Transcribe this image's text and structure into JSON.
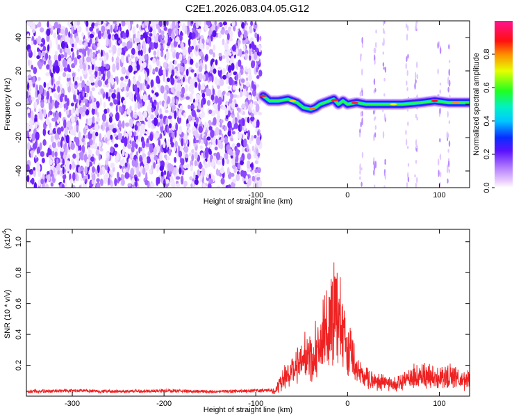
{
  "title": "C2E1.2026.083.04.05.G12",
  "chart_data": [
    {
      "type": "heatmap",
      "xlabel": "Height of straight line (km)",
      "ylabel": "Frequency (Hz)",
      "xlim": [
        -350,
        133
      ],
      "ylim": [
        -50,
        50
      ],
      "x_ticks": [
        -300,
        -200,
        -100,
        0,
        100
      ],
      "x_tick_labels": [
        "-300",
        "-200",
        "-100",
        "0",
        "100"
      ],
      "y_ticks": [
        -40,
        -20,
        0,
        20,
        40
      ],
      "y_tick_labels": [
        "-40",
        "-20",
        "0",
        "20",
        "40"
      ],
      "colorbar": {
        "label": "Normalized spectral amplitude",
        "range": [
          0,
          1
        ],
        "ticks": [
          0.0,
          0.2,
          0.4,
          0.6,
          0.8
        ],
        "tick_labels": [
          "0.0",
          "0.2",
          "0.4",
          "0.6",
          "0.8"
        ],
        "colormap": "rainbow (magenta-blue-cyan-green-yellow-red-magenta)"
      },
      "noise_region_x": [
        -350,
        -95
      ],
      "signal_track": {
        "x": [
          -92,
          -85,
          -75,
          -65,
          -55,
          -48,
          -40,
          -35,
          -30,
          -25,
          -20,
          -15,
          -10,
          -5,
          0,
          10,
          20,
          40,
          60,
          80,
          95,
          110,
          133
        ],
        "frequency": [
          5,
          2,
          2,
          3,
          1,
          -2,
          -3,
          -2,
          0,
          1,
          2,
          3,
          0,
          2,
          0,
          1,
          0,
          0,
          0,
          1,
          2,
          1,
          1
        ]
      },
      "grid": false
    },
    {
      "type": "line",
      "xlabel": "Height of straight line (km)",
      "ylabel": "SNR (10 * v/v)",
      "y_scale_label": "(x10",
      "y_scale_exp": "4",
      "xlim": [
        -350,
        133
      ],
      "ylim": [
        0,
        1.08
      ],
      "x_ticks": [
        -300,
        -200,
        -100,
        0,
        100
      ],
      "x_tick_labels": [
        "-300",
        "-200",
        "-100",
        "0",
        "100"
      ],
      "y_ticks": [
        0.2,
        0.4,
        0.6,
        0.8,
        1.0
      ],
      "y_tick_labels": [
        "0.2",
        "0.4",
        "0.6",
        "0.8",
        "1.0"
      ],
      "series": [
        {
          "color": "#ee2222",
          "x": [
            -350,
            -300,
            -250,
            -200,
            -150,
            -100,
            -80,
            -75,
            -70,
            -65,
            -60,
            -55,
            -50,
            -45,
            -40,
            -35,
            -30,
            -25,
            -20,
            -15,
            -12,
            -10,
            -8,
            -5,
            0,
            5,
            10,
            15,
            20,
            30,
            40,
            50,
            60,
            70,
            80,
            90,
            100,
            110,
            120,
            133
          ],
          "y": [
            0.03,
            0.035,
            0.03,
            0.035,
            0.03,
            0.035,
            0.04,
            0.1,
            0.15,
            0.2,
            0.22,
            0.3,
            0.28,
            0.35,
            0.3,
            0.4,
            0.45,
            0.55,
            0.6,
            0.75,
            0.9,
            0.65,
            0.7,
            0.5,
            0.4,
            0.32,
            0.22,
            0.18,
            0.15,
            0.13,
            0.12,
            0.1,
            0.12,
            0.16,
            0.18,
            0.17,
            0.16,
            0.18,
            0.15,
            0.13
          ]
        }
      ],
      "grid": false
    }
  ]
}
